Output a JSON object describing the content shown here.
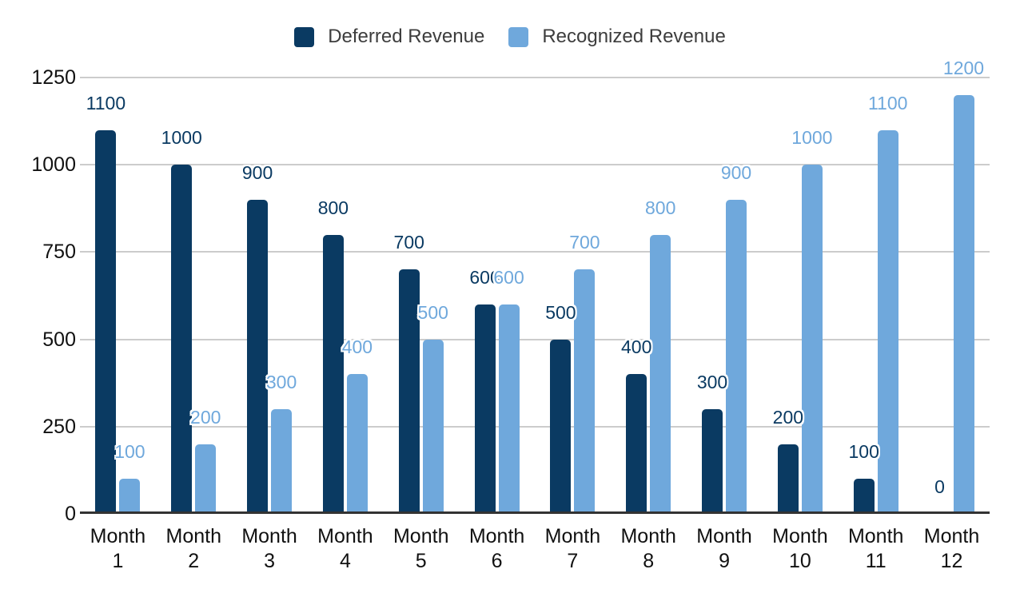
{
  "chart_data": {
    "type": "bar",
    "title": "",
    "xlabel": "",
    "ylabel": "",
    "categories": [
      "Month 1",
      "Month 2",
      "Month 3",
      "Month 4",
      "Month 5",
      "Month 6",
      "Month 7",
      "Month 8",
      "Month 9",
      "Month 10",
      "Month 11",
      "Month 12"
    ],
    "series": [
      {
        "name": "Deferred Revenue",
        "color": "#0a3a62",
        "values": [
          1100,
          1000,
          900,
          800,
          700,
          600,
          500,
          400,
          300,
          200,
          100,
          0
        ]
      },
      {
        "name": "Recognized Revenue",
        "color": "#6fa8dc",
        "values": [
          100,
          200,
          300,
          400,
          500,
          600,
          700,
          800,
          900,
          1000,
          1100,
          1200
        ]
      }
    ],
    "ylim": [
      0,
      1250
    ],
    "yticks": [
      0,
      250,
      500,
      750,
      1000,
      1250
    ],
    "grid": true,
    "legend_position": "top",
    "data_labels": true
  },
  "styles": {
    "background": "#ffffff",
    "grid_color": "#cccccc",
    "axis_color": "#333333",
    "tick_label_color": "#111111",
    "legend_text_color": "#3d3d3d"
  }
}
